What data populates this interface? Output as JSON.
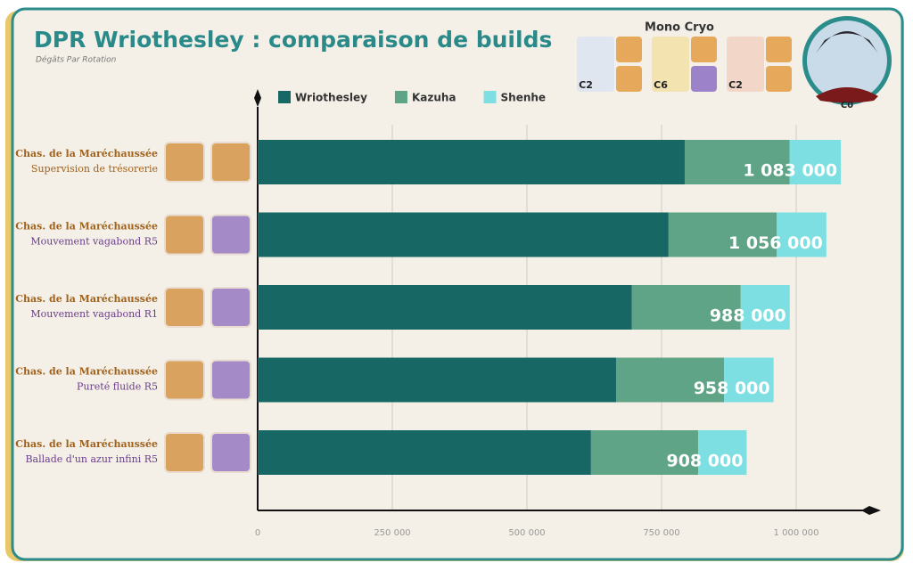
{
  "chart_data": {
    "type": "stacked-bar-horizontal",
    "title": "DPR Wriothesley : comparaison de builds",
    "subtitle": "Dégâts Par Rotation",
    "categories": [
      {
        "set": "Chas. de la Maréchaussée",
        "weapon": "Supervision de trésorerie"
      },
      {
        "set": "Chas. de la Maréchaussée",
        "weapon": "Mouvement vagabond R5"
      },
      {
        "set": "Chas. de la Maréchaussée",
        "weapon": "Mouvement vagabond R1"
      },
      {
        "set": "Chas. de la Maréchaussée",
        "weapon": "Pureté fluide R5"
      },
      {
        "set": "Chas. de la Maréchaussée",
        "weapon": "Ballade d'un azur infini R5"
      }
    ],
    "series": [
      {
        "name": "Wriothesley",
        "color": "#176865",
        "values": [
          793000,
          763000,
          695000,
          666000,
          619000
        ]
      },
      {
        "name": "Kazuha",
        "color": "#5fa486",
        "values": [
          195000,
          201000,
          202000,
          200000,
          199000
        ]
      },
      {
        "name": "Shenhe",
        "color": "#7ddfe1",
        "values": [
          95000,
          92000,
          91000,
          92000,
          90000
        ]
      }
    ],
    "totals": [
      1083000,
      1056000,
      988000,
      958000,
      908000
    ],
    "total_labels": [
      "1 083 000",
      "1 056 000",
      "988 000",
      "958 000",
      "908 000"
    ],
    "xlim": [
      0,
      1130000
    ],
    "xticks": [
      0,
      {
        "value": 250000,
        "label": "250 000"
      },
      {
        "value": 500000,
        "label": "500 000"
      },
      {
        "value": 750000,
        "label": "750 000"
      },
      {
        "value": 1000000,
        "label": "1 000 000"
      }
    ],
    "grid": true,
    "team": {
      "label": "Mono Cryo",
      "constellations": [
        "C2",
        "C6",
        "C2"
      ],
      "main": "C0"
    }
  }
}
